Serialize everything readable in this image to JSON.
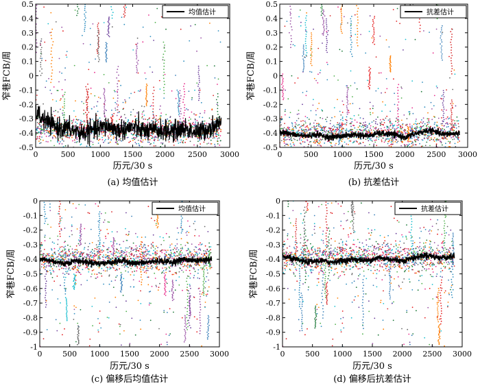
{
  "chart_data": [
    {
      "type": "scatter",
      "caption": "(a) 均值估计",
      "xlabel": "历元/30 s",
      "ylabel": "窄巷FCB/周",
      "xlim": [
        0,
        3000
      ],
      "ylim": [
        -0.5,
        0.5
      ],
      "xticks": [
        "0",
        "500",
        "1000",
        "1500",
        "2000",
        "2500",
        "3000"
      ],
      "yticks": [
        "-0.5",
        "-0.4",
        "-0.3",
        "-0.2",
        "-0.1",
        "0",
        "0.1",
        "0.2",
        "0.3",
        "0.4",
        "0.5"
      ],
      "legend": "均值估计",
      "estimate_line": {
        "x": [
          0,
          100,
          200,
          300,
          500,
          700,
          900,
          1100,
          1300,
          1500,
          1700,
          1900,
          2100,
          2300,
          2500,
          2700,
          2870
        ],
        "y": [
          -0.25,
          -0.3,
          -0.33,
          -0.36,
          -0.37,
          -0.4,
          -0.38,
          -0.35,
          -0.38,
          -0.36,
          -0.39,
          -0.38,
          -0.39,
          -0.37,
          -0.4,
          -0.36,
          -0.33
        ]
      },
      "series_center": -0.38,
      "scatter_band": [
        -0.5,
        0.5
      ]
    },
    {
      "type": "scatter",
      "caption": "(b) 抗差估计",
      "xlabel": "历元/30 s",
      "ylabel": "窄巷FCB/周",
      "xlim": [
        0,
        3000
      ],
      "ylim": [
        -0.5,
        0.5
      ],
      "xticks": [
        "0",
        "500",
        "1000",
        "1500",
        "2000",
        "2500",
        "3000"
      ],
      "yticks": [
        "-0.5",
        "-0.4",
        "-0.3",
        "-0.2",
        "-0.1",
        "0",
        "0.1",
        "0.2",
        "0.3",
        "0.4",
        "0.5"
      ],
      "legend": "抗差估计",
      "estimate_line": {
        "x": [
          0,
          200,
          400,
          600,
          800,
          1000,
          1200,
          1400,
          1600,
          1800,
          2000,
          2200,
          2400,
          2600,
          2870
        ],
        "y": [
          -0.39,
          -0.41,
          -0.42,
          -0.41,
          -0.43,
          -0.42,
          -0.41,
          -0.42,
          -0.4,
          -0.41,
          -0.43,
          -0.4,
          -0.38,
          -0.41,
          -0.4
        ]
      },
      "series_center": -0.4,
      "scatter_band": [
        -0.5,
        0.5
      ]
    },
    {
      "type": "scatter",
      "caption": "(c) 偏移后均值估计",
      "xlabel": "历元/30 s",
      "ylabel": "窄巷FCB/周",
      "xlim": [
        0,
        3000
      ],
      "ylim": [
        -1,
        0
      ],
      "xticks": [
        "0",
        "500",
        "1000",
        "1500",
        "2000",
        "2500",
        "3000"
      ],
      "yticks": [
        "-1",
        "-0.9",
        "-0.8",
        "-0.7",
        "-0.6",
        "-0.5",
        "-0.4",
        "-0.3",
        "-0.2",
        "-0.1",
        "0"
      ],
      "legend": "均值估计",
      "estimate_line": {
        "x": [
          0,
          200,
          400,
          600,
          800,
          1000,
          1200,
          1400,
          1600,
          1800,
          2000,
          2200,
          2400,
          2600,
          2870
        ],
        "y": [
          -0.4,
          -0.41,
          -0.43,
          -0.41,
          -0.42,
          -0.43,
          -0.42,
          -0.41,
          -0.43,
          -0.42,
          -0.41,
          -0.42,
          -0.4,
          -0.41,
          -0.4
        ]
      },
      "series_center": -0.4,
      "scatter_band": [
        -1,
        0
      ]
    },
    {
      "type": "scatter",
      "caption": "(d) 偏移后抗差估计",
      "xlabel": "历元/30 s",
      "ylabel": "窄巷FCB/周",
      "xlim": [
        0,
        3000
      ],
      "ylim": [
        -1,
        0
      ],
      "xticks": [
        "0",
        "500",
        "1000",
        "1500",
        "2000",
        "2500",
        "3000"
      ],
      "yticks": [
        "-1",
        "-0.9",
        "-0.8",
        "-0.7",
        "-0.6",
        "-0.5",
        "-0.4",
        "-0.3",
        "-0.2",
        "-0.1",
        "0"
      ],
      "legend": "抗差估计",
      "estimate_line": {
        "x": [
          0,
          200,
          400,
          600,
          800,
          1000,
          1200,
          1400,
          1600,
          1800,
          2000,
          2200,
          2400,
          2600,
          2870
        ],
        "y": [
          -0.38,
          -0.4,
          -0.42,
          -0.41,
          -0.42,
          -0.41,
          -0.4,
          -0.41,
          -0.39,
          -0.4,
          -0.41,
          -0.39,
          -0.37,
          -0.39,
          -0.38
        ]
      },
      "series_center": -0.39,
      "scatter_band": [
        -1,
        0
      ]
    }
  ],
  "colors": {
    "scatter": [
      "#e41a1c",
      "#377eb8",
      "#4daf4a",
      "#984ea3",
      "#ff7f00",
      "#17becf",
      "#1b7837",
      "#d62728",
      "#6a3d9a",
      "#e7298a",
      "#666666",
      "#2b8cbe"
    ],
    "estimate": "#000000"
  }
}
